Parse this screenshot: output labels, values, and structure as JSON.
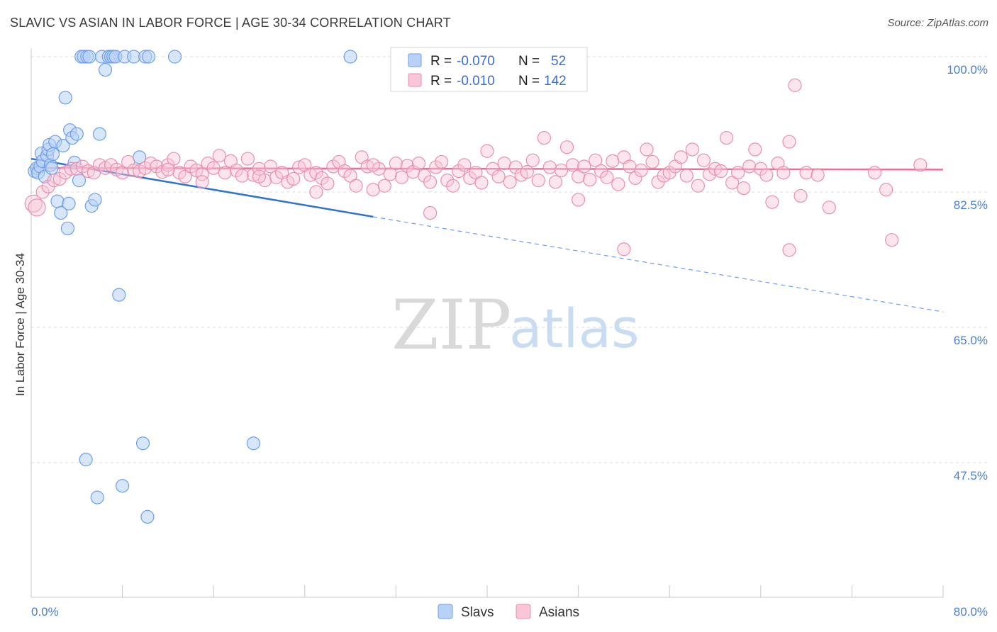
{
  "header": {
    "title": "SLAVIC VS ASIAN IN LABOR FORCE | AGE 30-34 CORRELATION CHART",
    "source": "Source: ZipAtlas.com"
  },
  "watermark": {
    "zip": "ZIP",
    "atlas": "atlas"
  },
  "chart_data": {
    "type": "scatter",
    "title": "SLAVIC VS ASIAN IN LABOR FORCE | AGE 30-34 CORRELATION CHART",
    "xlabel": "",
    "ylabel": "In Labor Force | Age 30-34",
    "xlim": [
      0,
      80
    ],
    "ylim": [
      30,
      100
    ],
    "x_tick_labels": [
      "0.0%",
      "80.0%"
    ],
    "y_ticks": [
      {
        "value": 100.0,
        "label": "100.0%"
      },
      {
        "value": 82.5,
        "label": "82.5%"
      },
      {
        "value": 65.0,
        "label": "65.0%"
      },
      {
        "value": 47.5,
        "label": "47.5%"
      }
    ],
    "legend": {
      "position": "top-center",
      "entries": [
        {
          "name": "Slavs",
          "r_label": "R =",
          "r_value": "-0.070",
          "n_label": "N =",
          "n_value": "52",
          "color": "#6d9eeb",
          "fill": "#b8d1f5"
        },
        {
          "name": "Asians",
          "r_label": "R =",
          "r_value": "-0.010",
          "n_label": "N =",
          "n_value": "142",
          "color": "#ea8fae",
          "fill": "#f8c6d7"
        }
      ]
    },
    "series": [
      {
        "name": "Slavs",
        "color": "#4a86dc",
        "points": [
          [
            0.3,
            85.2
          ],
          [
            0.5,
            85.6
          ],
          [
            0.6,
            85.0
          ],
          [
            0.8,
            85.8
          ],
          [
            0.9,
            87.5
          ],
          [
            1.0,
            86.5
          ],
          [
            1.2,
            84.5
          ],
          [
            1.4,
            87.2
          ],
          [
            1.5,
            88.0
          ],
          [
            1.6,
            88.6
          ],
          [
            1.7,
            86.0
          ],
          [
            1.8,
            85.6
          ],
          [
            1.9,
            87.4
          ],
          [
            2.1,
            89.0
          ],
          [
            2.3,
            81.3
          ],
          [
            2.6,
            79.8
          ],
          [
            2.8,
            88.5
          ],
          [
            3.0,
            94.7
          ],
          [
            3.2,
            77.8
          ],
          [
            3.3,
            81.0
          ],
          [
            3.4,
            90.5
          ],
          [
            3.6,
            89.5
          ],
          [
            3.8,
            86.3
          ],
          [
            4.0,
            90.0
          ],
          [
            4.2,
            84.0
          ],
          [
            4.4,
            100.0
          ],
          [
            4.6,
            100.0
          ],
          [
            4.8,
            47.9
          ],
          [
            4.9,
            100.0
          ],
          [
            5.1,
            100.0
          ],
          [
            5.3,
            80.7
          ],
          [
            5.6,
            81.5
          ],
          [
            5.8,
            43.0
          ],
          [
            6.0,
            90.0
          ],
          [
            6.2,
            100.0
          ],
          [
            6.5,
            98.3
          ],
          [
            6.8,
            100.0
          ],
          [
            7.0,
            100.0
          ],
          [
            7.2,
            100.0
          ],
          [
            7.4,
            100.0
          ],
          [
            7.7,
            69.2
          ],
          [
            8.0,
            44.5
          ],
          [
            8.2,
            100.0
          ],
          [
            9.0,
            100.0
          ],
          [
            9.5,
            87.0
          ],
          [
            9.8,
            50.0
          ],
          [
            10.0,
            100.0
          ],
          [
            10.2,
            40.5
          ],
          [
            10.3,
            100.0
          ],
          [
            12.6,
            100.0
          ],
          [
            19.5,
            50.0
          ],
          [
            28.0,
            100.0
          ]
        ],
        "trend": {
          "x0": 0,
          "y0": 86.8,
          "x1": 30,
          "y1": 79.3,
          "dash_to_x": 80,
          "dash_to_y": 67.0
        }
      },
      {
        "name": "Asians",
        "color": "#e96f98",
        "points": [
          [
            0.2,
            81.0
          ],
          [
            0.5,
            80.5
          ],
          [
            1.0,
            82.5
          ],
          [
            1.5,
            83.2
          ],
          [
            2.0,
            84.0
          ],
          [
            2.5,
            84.2
          ],
          [
            3.0,
            85.0
          ],
          [
            3.5,
            85.5
          ],
          [
            4.0,
            85.5
          ],
          [
            4.5,
            85.8
          ],
          [
            5.0,
            85.2
          ],
          [
            5.5,
            85.0
          ],
          [
            6.0,
            86.0
          ],
          [
            6.5,
            85.6
          ],
          [
            7.0,
            86.0
          ],
          [
            7.5,
            85.4
          ],
          [
            8.0,
            85.0
          ],
          [
            8.5,
            86.4
          ],
          [
            9.0,
            85.3
          ],
          [
            9.5,
            85.2
          ],
          [
            10.0,
            85.6
          ],
          [
            10.5,
            86.2
          ],
          [
            11.0,
            85.8
          ],
          [
            11.5,
            85.1
          ],
          [
            12.0,
            86.0
          ],
          [
            12.5,
            86.8
          ],
          [
            13.0,
            85.0
          ],
          [
            13.5,
            84.5
          ],
          [
            14.0,
            85.8
          ],
          [
            14.5,
            85.3
          ],
          [
            15.0,
            84.8
          ],
          [
            15.5,
            86.2
          ],
          [
            16.0,
            85.6
          ],
          [
            16.5,
            87.2
          ],
          [
            17.0,
            85.0
          ],
          [
            17.5,
            86.5
          ],
          [
            18.0,
            85.3
          ],
          [
            18.5,
            84.6
          ],
          [
            19.0,
            86.8
          ],
          [
            19.5,
            84.7
          ],
          [
            20.0,
            85.5
          ],
          [
            20.5,
            84.0
          ],
          [
            21.0,
            85.8
          ],
          [
            21.5,
            84.4
          ],
          [
            22.0,
            85.0
          ],
          [
            22.5,
            83.8
          ],
          [
            23.0,
            84.2
          ],
          [
            23.5,
            85.7
          ],
          [
            24.0,
            86.0
          ],
          [
            24.5,
            84.7
          ],
          [
            25.0,
            85.0
          ],
          [
            25.5,
            84.3
          ],
          [
            26.0,
            83.6
          ],
          [
            26.5,
            85.8
          ],
          [
            27.0,
            86.4
          ],
          [
            27.5,
            85.2
          ],
          [
            28.0,
            84.6
          ],
          [
            28.5,
            83.3
          ],
          [
            29.0,
            87.0
          ],
          [
            29.5,
            85.8
          ],
          [
            30.0,
            82.8
          ],
          [
            30.5,
            85.5
          ],
          [
            31.0,
            83.3
          ],
          [
            31.5,
            84.8
          ],
          [
            32.0,
            86.2
          ],
          [
            32.5,
            84.4
          ],
          [
            33.0,
            85.9
          ],
          [
            33.5,
            85.1
          ],
          [
            34.0,
            86.2
          ],
          [
            34.5,
            84.6
          ],
          [
            35.0,
            83.8
          ],
          [
            35.5,
            85.7
          ],
          [
            36.0,
            86.4
          ],
          [
            36.5,
            84.0
          ],
          [
            37.0,
            83.3
          ],
          [
            37.5,
            85.2
          ],
          [
            38.0,
            86.0
          ],
          [
            38.5,
            84.3
          ],
          [
            39.0,
            85.0
          ],
          [
            39.5,
            83.7
          ],
          [
            40.0,
            87.8
          ],
          [
            40.5,
            85.5
          ],
          [
            41.0,
            84.5
          ],
          [
            41.5,
            86.2
          ],
          [
            42.0,
            83.8
          ],
          [
            42.5,
            85.7
          ],
          [
            43.0,
            84.7
          ],
          [
            43.5,
            85.1
          ],
          [
            44.0,
            86.6
          ],
          [
            44.5,
            84.0
          ],
          [
            45.0,
            89.5
          ],
          [
            45.5,
            85.7
          ],
          [
            46.0,
            83.8
          ],
          [
            46.5,
            85.3
          ],
          [
            47.0,
            88.3
          ],
          [
            47.5,
            86.0
          ],
          [
            48.0,
            84.5
          ],
          [
            48.5,
            85.8
          ],
          [
            49.0,
            84.1
          ],
          [
            49.5,
            86.6
          ],
          [
            50.0,
            85.2
          ],
          [
            50.5,
            84.4
          ],
          [
            51.0,
            86.5
          ],
          [
            51.5,
            83.5
          ],
          [
            52.0,
            87.0
          ],
          [
            52.5,
            85.8
          ],
          [
            53.0,
            84.3
          ],
          [
            53.5,
            85.3
          ],
          [
            54.0,
            88.0
          ],
          [
            54.5,
            86.4
          ],
          [
            55.0,
            83.8
          ],
          [
            55.5,
            84.6
          ],
          [
            56.0,
            85.0
          ],
          [
            56.5,
            85.8
          ],
          [
            57.0,
            87.0
          ],
          [
            57.5,
            84.6
          ],
          [
            58.0,
            88.0
          ],
          [
            58.5,
            83.3
          ],
          [
            59.0,
            86.6
          ],
          [
            59.5,
            84.8
          ],
          [
            60.0,
            85.5
          ],
          [
            60.5,
            85.2
          ],
          [
            61.0,
            89.5
          ],
          [
            61.5,
            83.7
          ],
          [
            62.0,
            85.0
          ],
          [
            62.5,
            83.0
          ],
          [
            63.0,
            85.8
          ],
          [
            63.5,
            88.0
          ],
          [
            64.0,
            85.5
          ],
          [
            64.5,
            84.7
          ],
          [
            65.0,
            81.2
          ],
          [
            65.5,
            86.2
          ],
          [
            66.0,
            85.0
          ],
          [
            66.5,
            89.0
          ],
          [
            67.0,
            96.3
          ],
          [
            67.5,
            82.0
          ],
          [
            68.0,
            85.0
          ],
          [
            69.0,
            84.7
          ],
          [
            70.0,
            80.5
          ],
          [
            75.0,
            82.8
          ],
          [
            74.0,
            85.0
          ],
          [
            78.0,
            86.0
          ],
          [
            75.5,
            76.3
          ],
          [
            66.5,
            75.0
          ],
          [
            52.0,
            75.1
          ],
          [
            48.0,
            81.5
          ],
          [
            35.0,
            79.8
          ],
          [
            25.0,
            82.5
          ],
          [
            20.0,
            84.5
          ],
          [
            15.0,
            83.8
          ],
          [
            12.0,
            85.4
          ],
          [
            30.0,
            86.0
          ]
        ],
        "trend": {
          "x0": 0,
          "y0": 85.6,
          "x1": 80,
          "y1": 85.4
        }
      }
    ]
  },
  "bottom_legend": [
    {
      "name": "Slavs",
      "fill": "#b8d1f5",
      "stroke": "#6d9eeb"
    },
    {
      "name": "Asians",
      "fill": "#f8c6d7",
      "stroke": "#ea8fae"
    }
  ]
}
